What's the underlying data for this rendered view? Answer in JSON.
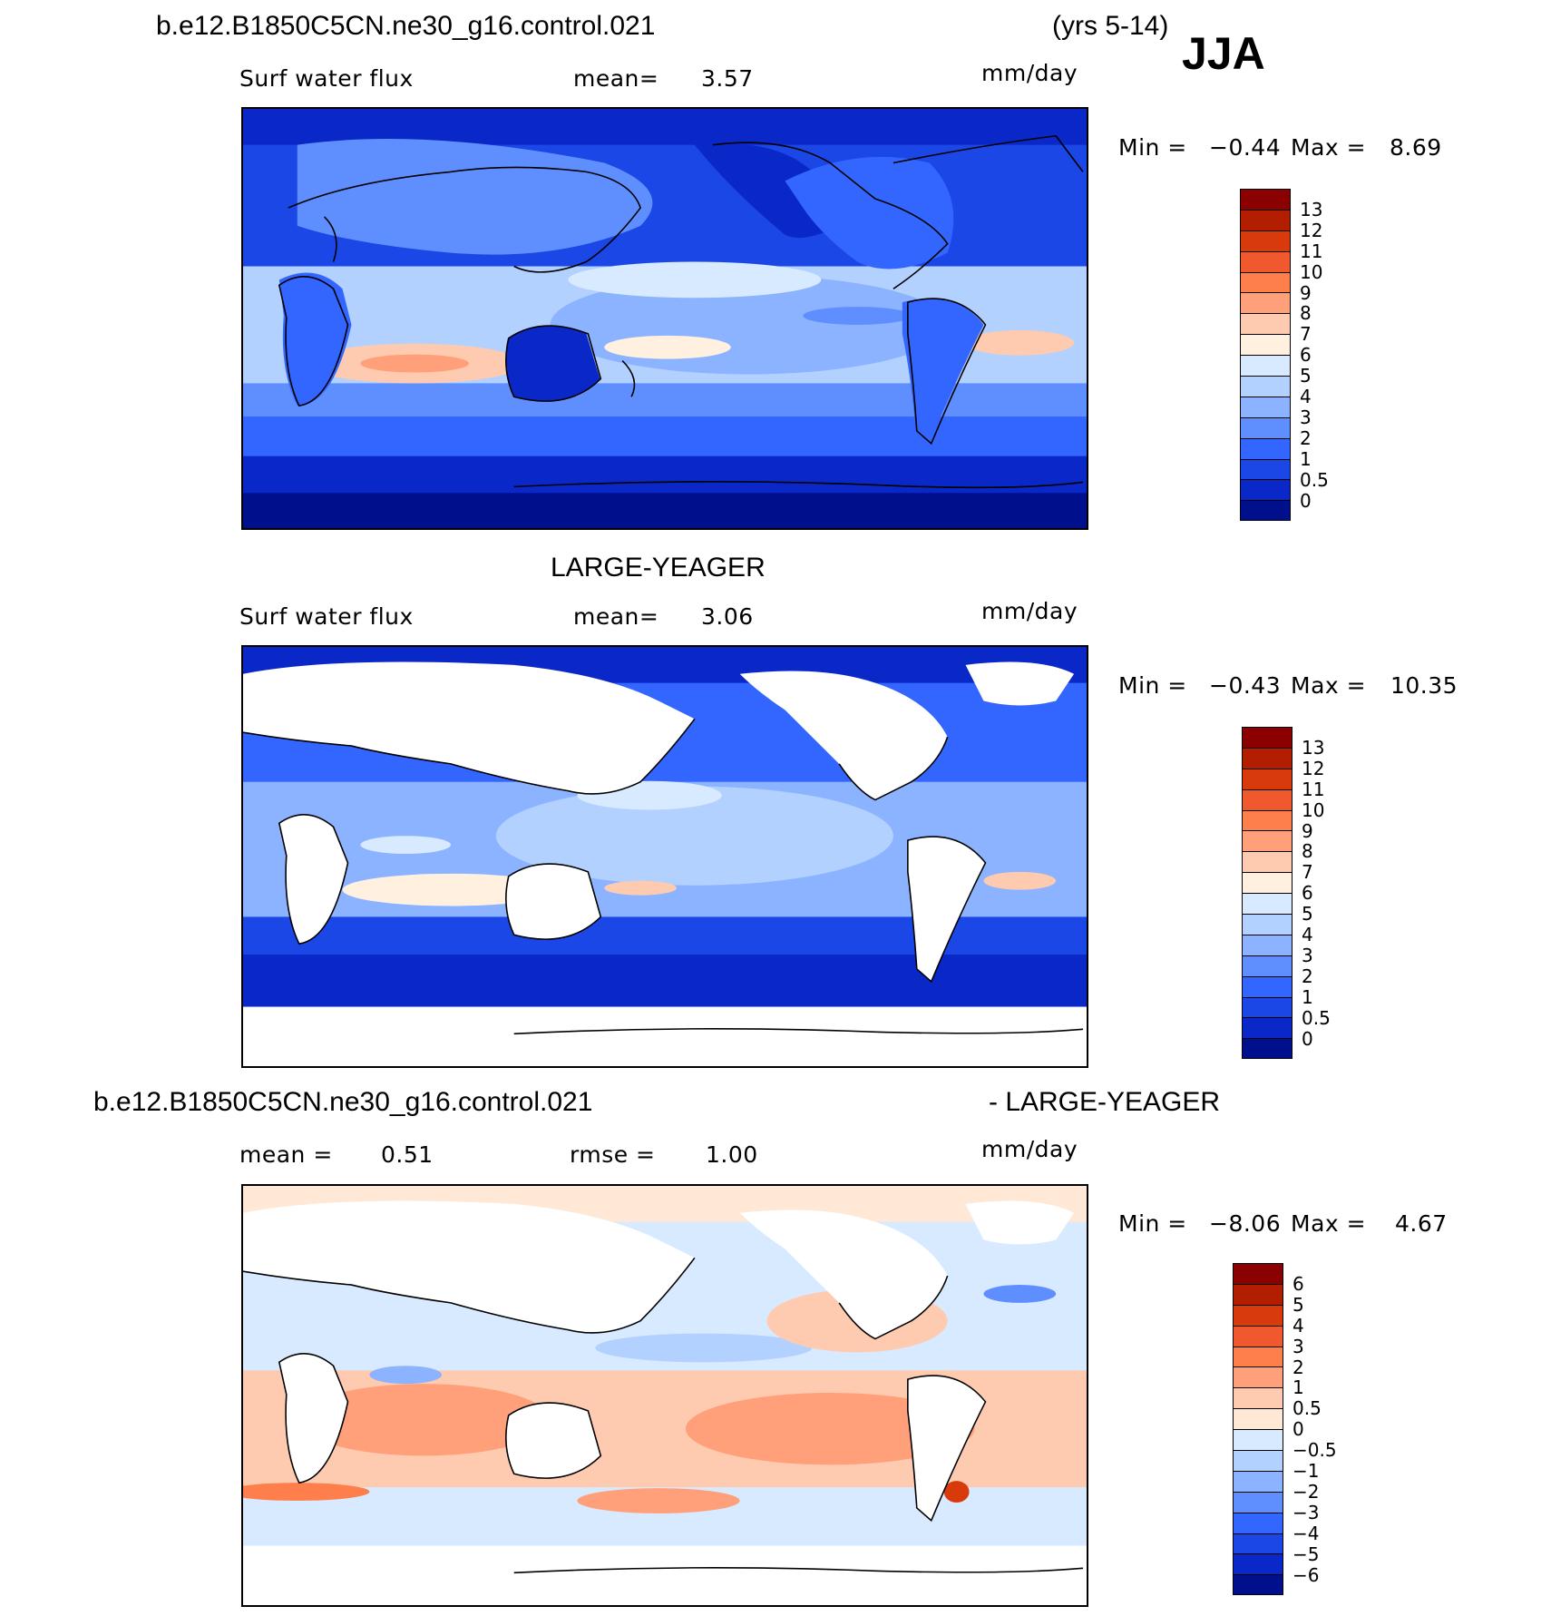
{
  "header": {
    "case_name": "b.e12.B1850C5CN.ne30_g16.control.021",
    "years": "(yrs 5-14)",
    "season": "JJA"
  },
  "panels": [
    {
      "title": "",
      "variable": "Surf water flux",
      "stat1_label": "mean=",
      "stat1_value": "3.57",
      "stat2_label": "",
      "stat2_value": "",
      "units": "mm/day",
      "min_label": "Min =",
      "min_value": "−0.44",
      "max_label": "Max =",
      "max_value": "8.69",
      "colorbar_labels": [
        "13",
        "12",
        "11",
        "10",
        "9",
        "8",
        "7",
        "6",
        "5",
        "4",
        "3",
        "2",
        "1",
        "0.5",
        "0"
      ],
      "colors": [
        "#8b0000",
        "#b41e00",
        "#d93a0c",
        "#f0582e",
        "#ff7f4c",
        "#ffa07a",
        "#ffcbb0",
        "#fff0e0",
        "#d8eaff",
        "#b3d1ff",
        "#8cb3ff",
        "#5f8fff",
        "#3366ff",
        "#1a47e6",
        "#0a28c8",
        "#000f8c"
      ],
      "map_fill": "model",
      "land_masked": false
    },
    {
      "title": "LARGE-YEAGER",
      "variable": "Surf water flux",
      "stat1_label": "mean=",
      "stat1_value": "3.06",
      "stat2_label": "",
      "stat2_value": "",
      "units": "mm/day",
      "min_label": "Min =",
      "min_value": "−0.43",
      "max_label": "Max =",
      "max_value": "10.35",
      "colorbar_labels": [
        "13",
        "12",
        "11",
        "10",
        "9",
        "8",
        "7",
        "6",
        "5",
        "4",
        "3",
        "2",
        "1",
        "0.5",
        "0"
      ],
      "colors": [
        "#8b0000",
        "#b41e00",
        "#d93a0c",
        "#f0582e",
        "#ff7f4c",
        "#ffa07a",
        "#ffcbb0",
        "#fff0e0",
        "#d8eaff",
        "#b3d1ff",
        "#8cb3ff",
        "#5f8fff",
        "#3366ff",
        "#1a47e6",
        "#0a28c8",
        "#000f8c"
      ],
      "map_fill": "obs",
      "land_masked": true
    },
    {
      "title_left": "b.e12.B1850C5CN.ne30_g16.control.021",
      "title_right": "- LARGE-YEAGER",
      "variable": "",
      "stat1_label": "mean =",
      "stat1_value": "0.51",
      "stat2_label": "rmse =",
      "stat2_value": "1.00",
      "units": "mm/day",
      "min_label": "Min =",
      "min_value": "−8.06",
      "max_label": "Max =",
      "max_value": "4.67",
      "colorbar_labels": [
        "6",
        "5",
        "4",
        "3",
        "2",
        "1",
        "0.5",
        "0",
        "−0.5",
        "−1",
        "−2",
        "−3",
        "−4",
        "−5",
        "−6"
      ],
      "colors": [
        "#8b0000",
        "#b41e00",
        "#d93a0c",
        "#f0582e",
        "#ff7f4c",
        "#ffa07a",
        "#ffcbb0",
        "#ffe9d6",
        "#d8eaff",
        "#b3d1ff",
        "#8cb3ff",
        "#5f8fff",
        "#3366ff",
        "#1a47e6",
        "#0a28c8",
        "#000f8c"
      ],
      "map_fill": "diff",
      "land_masked": true
    }
  ]
}
